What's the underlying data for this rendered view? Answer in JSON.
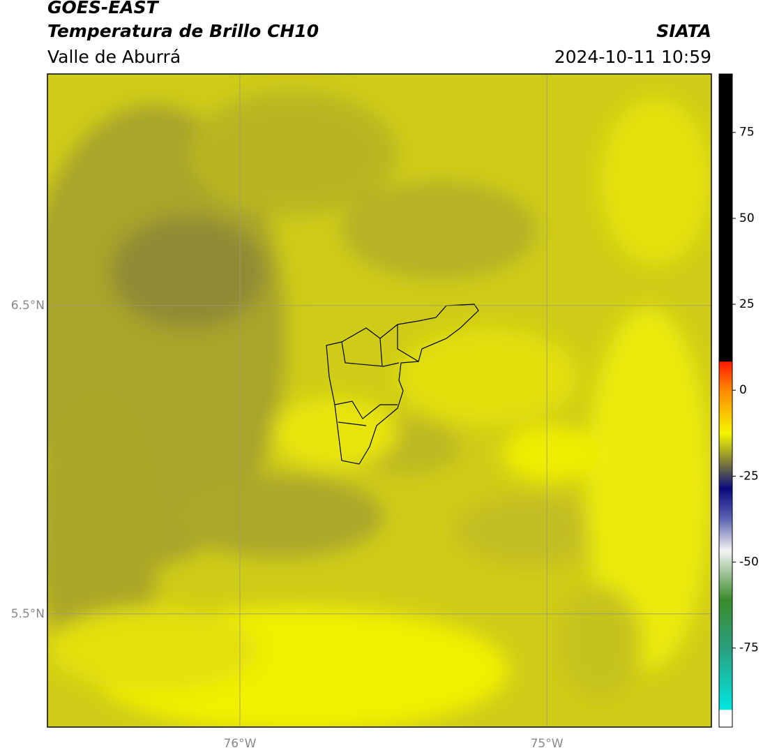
{
  "header": {
    "title": "GOES-EAST",
    "subtitle": "Temperatura de Brillo CH10",
    "region": "Valle de Aburrá",
    "source": "SIATA",
    "datetime": "2024-10-11 10:59"
  },
  "map": {
    "latlim": [
      5.133,
      7.251
    ],
    "lonlim": [
      -76.627,
      -74.464
    ],
    "lat_ticks": [
      {
        "value": 6.5,
        "label": "6.5°N"
      },
      {
        "value": 5.5,
        "label": "5.5°N"
      }
    ],
    "lon_ticks": [
      {
        "value": -76,
        "label": "76°W"
      },
      {
        "value": -75,
        "label": "75°W"
      }
    ]
  },
  "colorbar": {
    "lim": [
      -98,
      92
    ],
    "ticks": [
      75,
      50,
      25,
      0,
      -25,
      -50,
      -75
    ]
  }
}
